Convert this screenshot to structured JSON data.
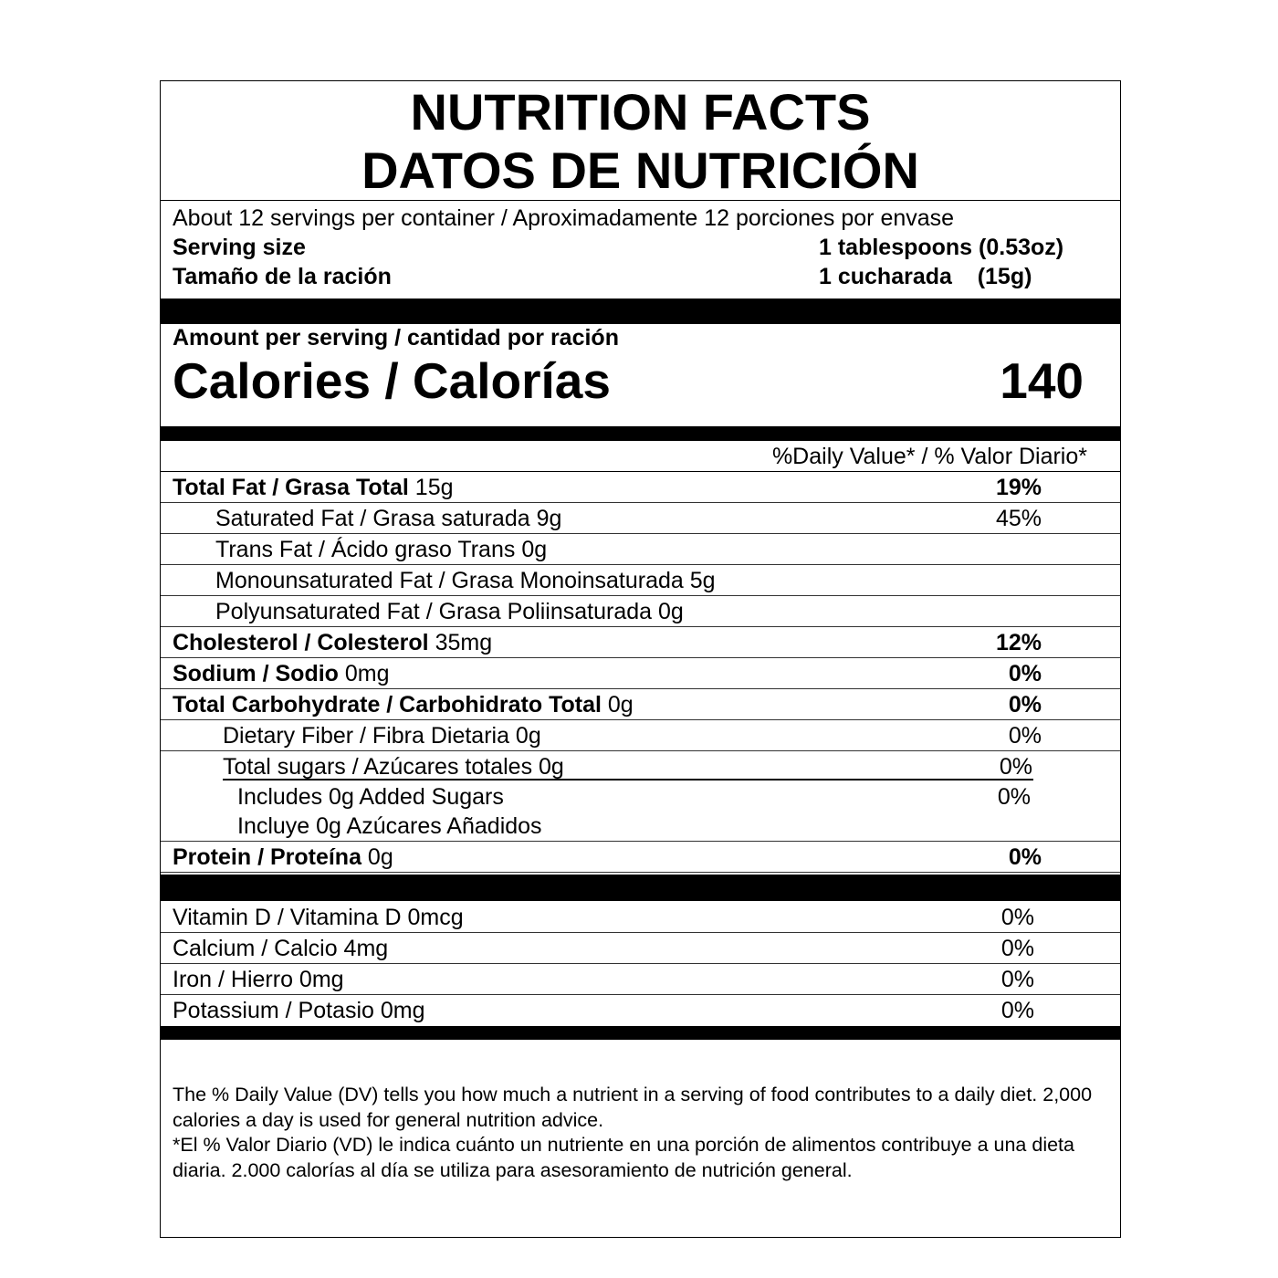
{
  "title_en": "NUTRITION FACTS",
  "title_es": "DATOS DE NUTRICIÓN",
  "servings": "About 12 servings per container / Aproximadamente 12 porciones por envase",
  "serving_size_label": "Serving size",
  "serving_size_value": "1 tablespoons (0.53oz)",
  "serving_size_label_es": "Tamaño de la ración",
  "serving_size_value_es": "1 cucharada    (15g)",
  "amount_per_serving": "Amount per serving / cantidad por ración",
  "calories_label": "Calories / Calorías",
  "calories_value": "140",
  "dv_header": "%Daily Value* / % Valor Diario*",
  "rows": [
    {
      "name": "Total Fat / Grasa Total",
      "amount": " 15g",
      "pct": "19%",
      "bold": true,
      "indent": 0
    },
    {
      "name": "Saturated Fat / Grasa saturada 9g",
      "amount": "",
      "pct": "45%",
      "bold": false,
      "indent": 1
    },
    {
      "name": "Trans Fat / Ácido graso Trans 0g",
      "amount": "",
      "pct": "",
      "bold": false,
      "indent": 1
    },
    {
      "name": "Monounsaturated Fat / Grasa Monoinsaturada 5g",
      "amount": "",
      "pct": "",
      "bold": false,
      "indent": 1
    },
    {
      "name": "Polyunsaturated Fat /  Grasa Poliinsaturada 0g",
      "amount": "",
      "pct": "",
      "bold": false,
      "indent": 1
    },
    {
      "name": "Cholesterol / Colesterol",
      "amount": " 35mg",
      "pct": "12%",
      "bold": true,
      "indent": 0
    },
    {
      "name": "Sodium / Sodio",
      "amount": " 0mg",
      "pct": "0%",
      "bold": true,
      "indent": 0
    },
    {
      "name": "Total Carbohydrate / Carbohidrato Total",
      "amount": " 0g",
      "pct": "0%",
      "bold": true,
      "indent": 0
    },
    {
      "name": "Dietary Fiber / Fibra Dietaria 0g",
      "amount": "",
      "pct": "0%",
      "bold": false,
      "indent": 2
    }
  ],
  "sugars": {
    "name": "Total sugars / Azúcares totales 0g",
    "pct": "0%"
  },
  "added_sugars": {
    "line1": "Includes 0g Added Sugars",
    "line2": "Incluye 0g Azúcares Añadidos",
    "pct": "0%"
  },
  "protein": {
    "name": "Protein / Proteína",
    "amount": " 0g",
    "pct": "0%"
  },
  "vitamins": [
    {
      "name": "Vitamin D / Vitamina D 0mcg",
      "pct": "0%"
    },
    {
      "name": "Calcium / Calcio 4mg",
      "pct": "0%"
    },
    {
      "name": "Iron / Hierro 0mg",
      "pct": "0%"
    },
    {
      "name": "Potassium / Potasio 0mg",
      "pct": "0%"
    }
  ],
  "footnote_en": "The % Daily Value (DV) tells you how much a nutrient in a serving of food contributes to a daily diet. 2,000 calories a day is used for general nutrition advice.",
  "footnote_es": "*El % Valor Diario (VD) le indica cuánto un nutriente en una porción de alimentos contribuye a una dieta diaria. 2.000 calorías al día se utiliza para asesoramiento de nutrición general."
}
